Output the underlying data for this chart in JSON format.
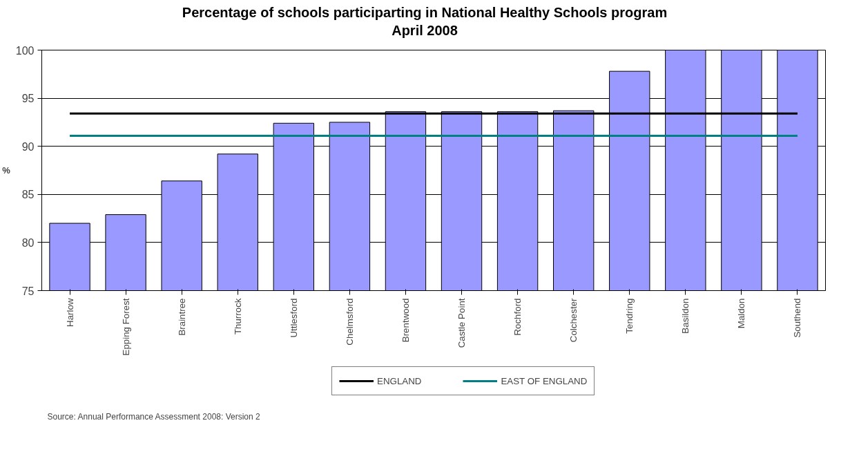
{
  "chart_data": {
    "type": "bar",
    "title": "Percentage of schools participarting in National Healthy Schools program\nApril 2008",
    "ylabel": "%",
    "categories": [
      "Harlow",
      "Epping Forest",
      "Braintree",
      "Thurrock",
      "Uttlesford",
      "Chelmsford",
      "Brentwood",
      "Castle Point",
      "Rochford",
      "Colchester",
      "Tendring",
      "Basildon",
      "Maldon",
      "Southend"
    ],
    "series": [
      {
        "color": "#9999ff",
        "values": [
          82.0,
          82.9,
          86.4,
          89.2,
          92.4,
          92.5,
          93.6,
          93.6,
          93.6,
          93.7,
          97.8,
          100,
          100,
          100
        ]
      },
      {
        "type": "line",
        "name": "ENGLAND",
        "color": "#000000",
        "values": [
          93.4,
          93.4,
          93.4,
          93.4,
          93.4,
          93.4,
          93.4,
          93.4,
          93.4,
          93.4,
          93.4,
          93.4,
          93.4,
          93.4
        ]
      },
      {
        "type": "line",
        "name": "EAST OF ENGLAND",
        "color": "#008080",
        "values": [
          91.1,
          91.1,
          91.1,
          91.1,
          91.1,
          91.1,
          91.1,
          91.1,
          91.1,
          91.1,
          91.1,
          91.1,
          91.1,
          91.1
        ]
      }
    ],
    "ylim": [
      75,
      100
    ],
    "yticks": [
      75,
      80,
      85,
      90,
      95,
      100
    ],
    "grid": "y",
    "legend": "bottom",
    "annotations": [
      "Source: Annual Performance Assessment 2008: Version 2"
    ]
  }
}
